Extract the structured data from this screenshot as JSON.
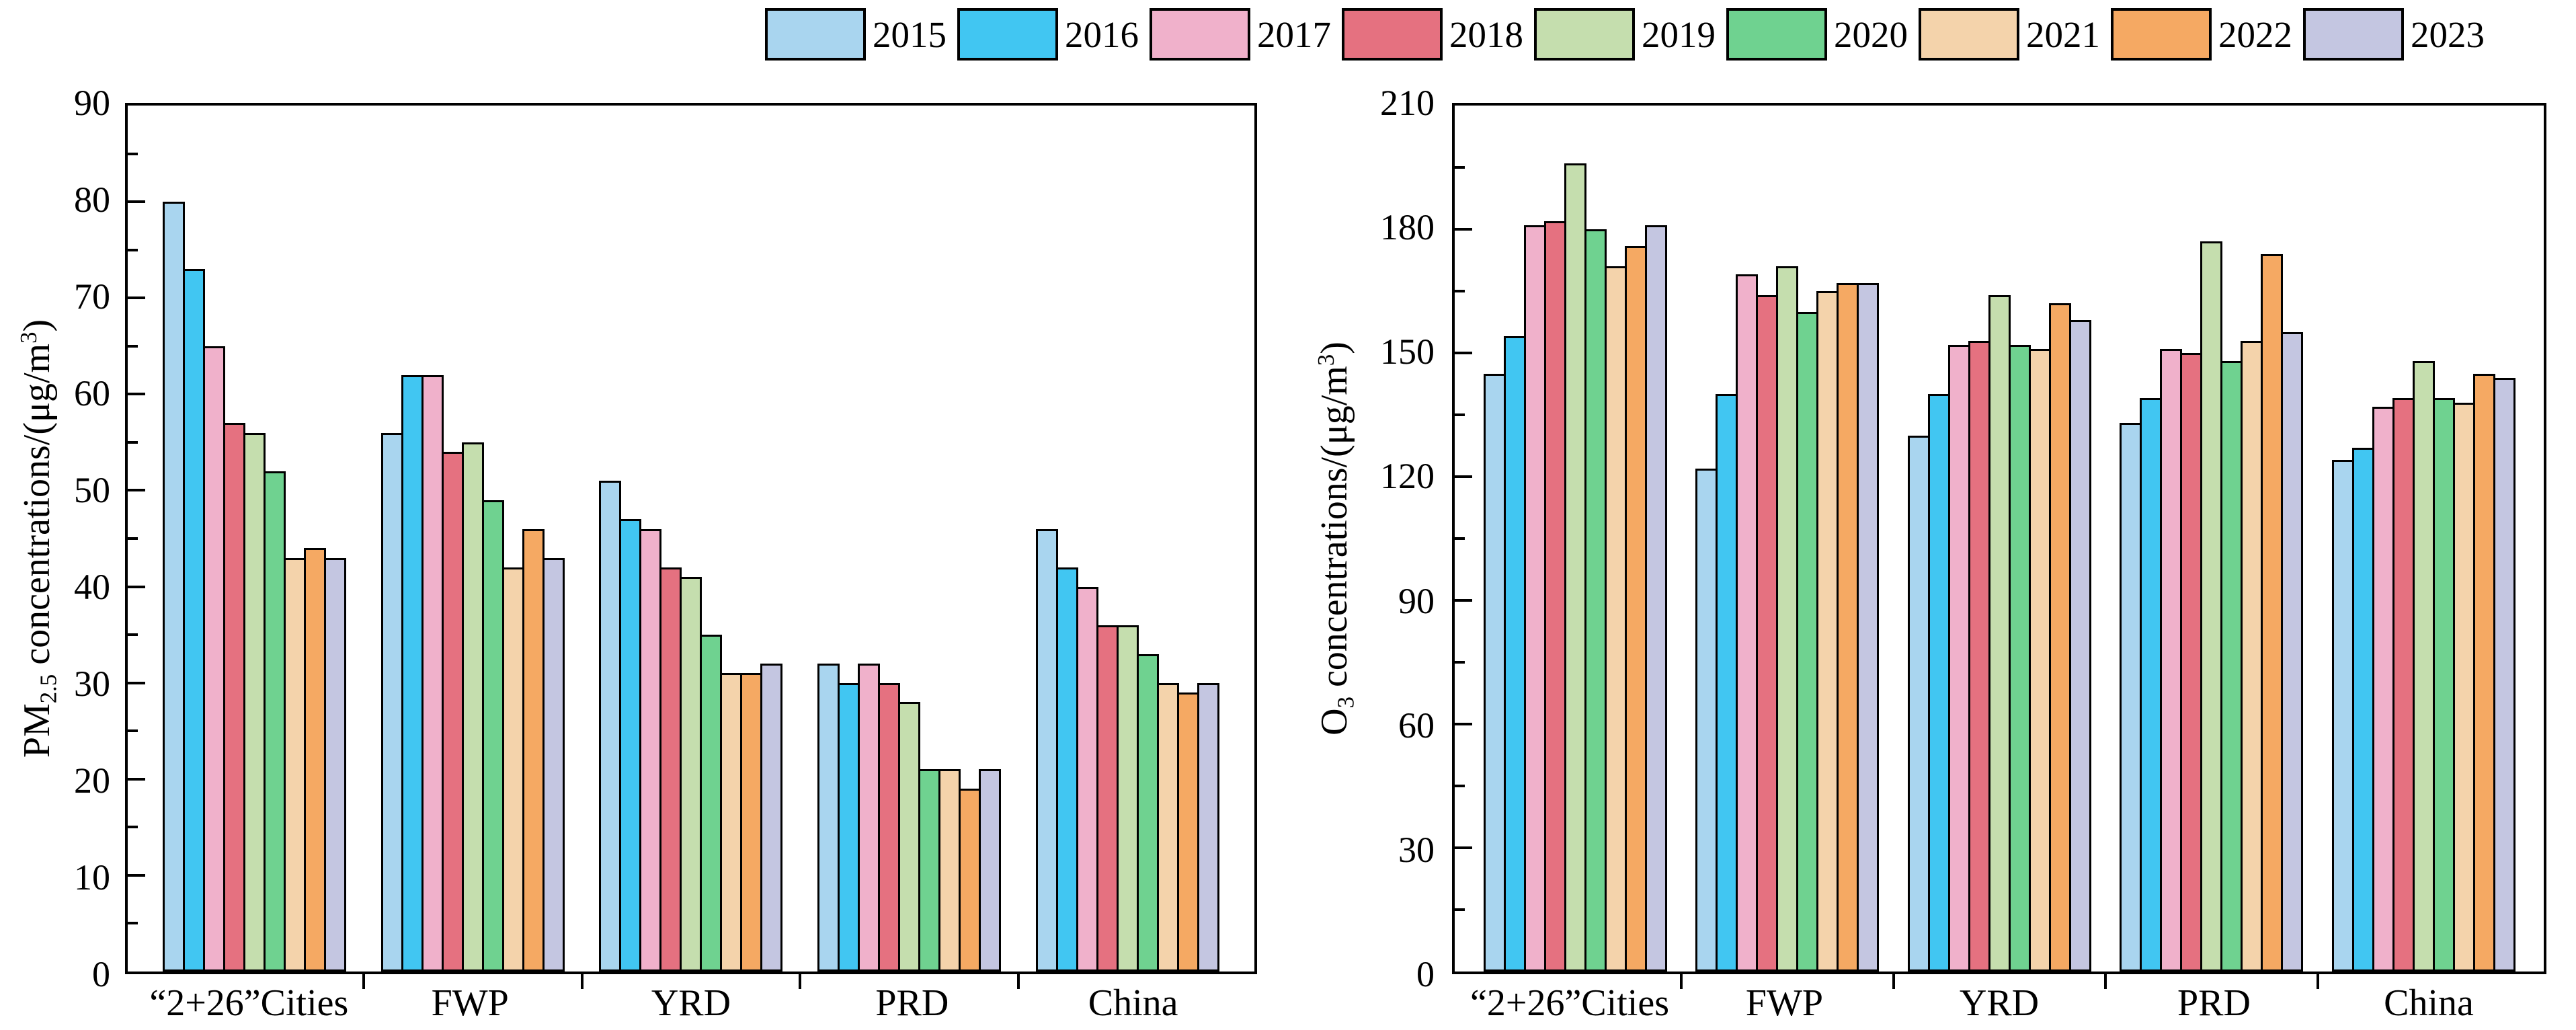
{
  "legend": {
    "position": "top",
    "years": [
      "2015",
      "2016",
      "2017",
      "2018",
      "2019",
      "2020",
      "2021",
      "2022",
      "2023"
    ],
    "colors": {
      "2015": "#a9d5ef",
      "2016": "#41c6f2",
      "2017": "#f0b1cb",
      "2018": "#e57180",
      "2019": "#c5deae",
      "2020": "#6fd290",
      "2021": "#f4d3ab",
      "2022": "#f5a963",
      "2023": "#c4c6e1"
    }
  },
  "chart_data": [
    {
      "type": "bar",
      "title": "",
      "xlabel": "",
      "ylabel": "PM2.5 concentrations/(μg/m3)",
      "ylabel_parts": {
        "base1": "PM",
        "sub": "2.5",
        "base2": " concentrations/(μg/m",
        "sup": "3",
        "base3": ")"
      },
      "ylim": [
        0,
        90
      ],
      "ytick_step": 10,
      "ytick_minor_step": 5,
      "grid": false,
      "legend_position": "top",
      "categories": [
        "“2+26”Cities",
        "FWP",
        "YRD",
        "PRD",
        "China"
      ],
      "series": [
        {
          "name": "2015",
          "values": [
            80,
            56,
            51,
            32,
            46
          ]
        },
        {
          "name": "2016",
          "values": [
            73,
            62,
            47,
            30,
            42
          ]
        },
        {
          "name": "2017",
          "values": [
            65,
            62,
            46,
            32,
            40
          ]
        },
        {
          "name": "2018",
          "values": [
            57,
            54,
            42,
            30,
            36
          ]
        },
        {
          "name": "2019",
          "values": [
            56,
            55,
            41,
            28,
            36
          ]
        },
        {
          "name": "2020",
          "values": [
            52,
            49,
            35,
            21,
            33
          ]
        },
        {
          "name": "2021",
          "values": [
            43,
            42,
            31,
            21,
            30
          ]
        },
        {
          "name": "2022",
          "values": [
            44,
            46,
            31,
            19,
            29
          ]
        },
        {
          "name": "2023",
          "values": [
            43,
            43,
            32,
            21,
            30
          ]
        }
      ]
    },
    {
      "type": "bar",
      "title": "",
      "xlabel": "",
      "ylabel": "O3 concentrations/(μg/m3)",
      "ylabel_parts": {
        "base1": "O",
        "sub": "3",
        "base2": " concentrations/(μg/m",
        "sup": "3",
        "base3": ")"
      },
      "ylim": [
        0,
        210
      ],
      "ytick_step": 30,
      "ytick_minor_step": 15,
      "grid": false,
      "legend_position": "top",
      "categories": [
        "“2+26”Cities",
        "FWP",
        "YRD",
        "PRD",
        "China"
      ],
      "series": [
        {
          "name": "2015",
          "values": [
            145,
            122,
            130,
            133,
            124
          ]
        },
        {
          "name": "2016",
          "values": [
            154,
            140,
            140,
            139,
            127
          ]
        },
        {
          "name": "2017",
          "values": [
            181,
            169,
            152,
            151,
            137
          ]
        },
        {
          "name": "2018",
          "values": [
            182,
            164,
            153,
            150,
            139
          ]
        },
        {
          "name": "2019",
          "values": [
            196,
            171,
            164,
            177,
            148
          ]
        },
        {
          "name": "2020",
          "values": [
            180,
            160,
            152,
            148,
            139
          ]
        },
        {
          "name": "2021",
          "values": [
            171,
            165,
            151,
            153,
            138
          ]
        },
        {
          "name": "2022",
          "values": [
            176,
            167,
            162,
            174,
            145
          ]
        },
        {
          "name": "2023",
          "values": [
            181,
            167,
            158,
            155,
            144
          ]
        }
      ]
    }
  ]
}
